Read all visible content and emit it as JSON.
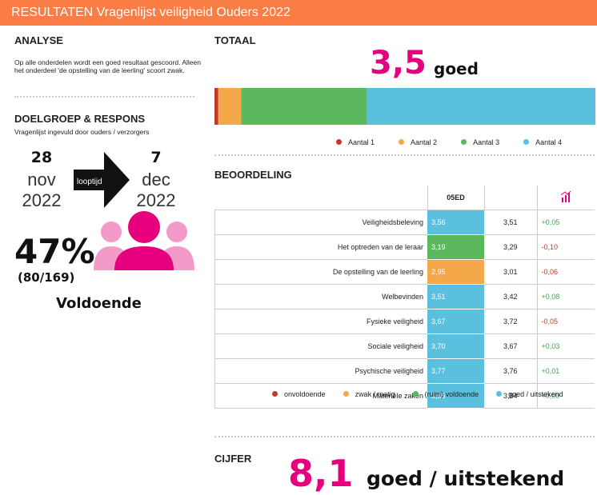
{
  "header": {
    "title": "RESULTATEN Vragenlijst veiligheid Ouders 2022"
  },
  "analyse": {
    "heading": "ANALYSE",
    "text": "Op alle onderdelen wordt een goed resultaat gescoord. Alleen het onderdeel 'de opstelling van de leerling' scoort zwak."
  },
  "doelgroep": {
    "heading": "DOELGROEP & RESPONS",
    "text": "Vragenlijst ingevuld door ouders / verzorgers",
    "start": {
      "day": "28",
      "month": "nov",
      "year": "2022"
    },
    "arrow_label": "looptijd",
    "end": {
      "day": "7",
      "month": "dec",
      "year": "2022"
    },
    "percentage": "47%",
    "count": "(80/169)",
    "rating": "Voldoende"
  },
  "totaal": {
    "heading": "TOTAAL",
    "score": "3,5",
    "rating": "goed",
    "chart_data": {
      "type": "bar",
      "xlim": [
        0,
        100
      ],
      "series": [
        {
          "name": "Aantal 1",
          "color": "#c0392b",
          "values": [
            1
          ]
        },
        {
          "name": "Aantal 2",
          "color": "#f4a84a",
          "values": [
            6
          ]
        },
        {
          "name": "Aantal 3",
          "color": "#5cb85c",
          "values": [
            33
          ]
        },
        {
          "name": "Aantal 4",
          "color": "#5bc0de",
          "values": [
            60
          ]
        }
      ]
    }
  },
  "beoordeling": {
    "heading": "BEOORDELING",
    "column": "05ED",
    "rows": [
      {
        "label": "Veiligheidsbeleving",
        "score": "3,56",
        "score_color": "#5bc0de",
        "benchmark": "3,51",
        "diff": "+0,05",
        "diff_color": "#3aa84a"
      },
      {
        "label": "Het optreden van de leraar",
        "score": "3,19",
        "score_color": "#5cb85c",
        "benchmark": "3,29",
        "diff": "-0,10",
        "diff_color": "#d0342c"
      },
      {
        "label": "De opstelling van de leerling",
        "score": "2,95",
        "score_color": "#f4a84a",
        "benchmark": "3,01",
        "diff": "-0,06",
        "diff_color": "#d0342c"
      },
      {
        "label": "Welbevinden",
        "score": "3,51",
        "score_color": "#5bc0de",
        "benchmark": "3,42",
        "diff": "+0,08",
        "diff_color": "#3aa84a"
      },
      {
        "label": "Fysieke veiligheid",
        "score": "3,67",
        "score_color": "#5bc0de",
        "benchmark": "3,72",
        "diff": "-0,05",
        "diff_color": "#d0342c"
      },
      {
        "label": "Sociale veiligheid",
        "score": "3,70",
        "score_color": "#5bc0de",
        "benchmark": "3,67",
        "diff": "+0,03",
        "diff_color": "#3aa84a"
      },
      {
        "label": "Psychische veiligheid",
        "score": "3,77",
        "score_color": "#5bc0de",
        "benchmark": "3,76",
        "diff": "+0,01",
        "diff_color": "#3aa84a"
      },
      {
        "label": "Materiële zaken",
        "score": "3,85",
        "score_color": "#5bc0de",
        "benchmark": "3,84",
        "diff": "+0,00",
        "diff_color": "#3aa84a"
      }
    ],
    "legend": [
      {
        "name": "onvoldoende",
        "color": "#c0392b"
      },
      {
        "name": "zwak / matig",
        "color": "#f4a84a"
      },
      {
        "name": "(ruim) voldoende",
        "color": "#5cb85c"
      },
      {
        "name": "goed / uitstekend",
        "color": "#5bc0de"
      }
    ]
  },
  "cijfer": {
    "heading": "CIJFER",
    "score": "8,1",
    "rating": "goed / uitstekend"
  }
}
